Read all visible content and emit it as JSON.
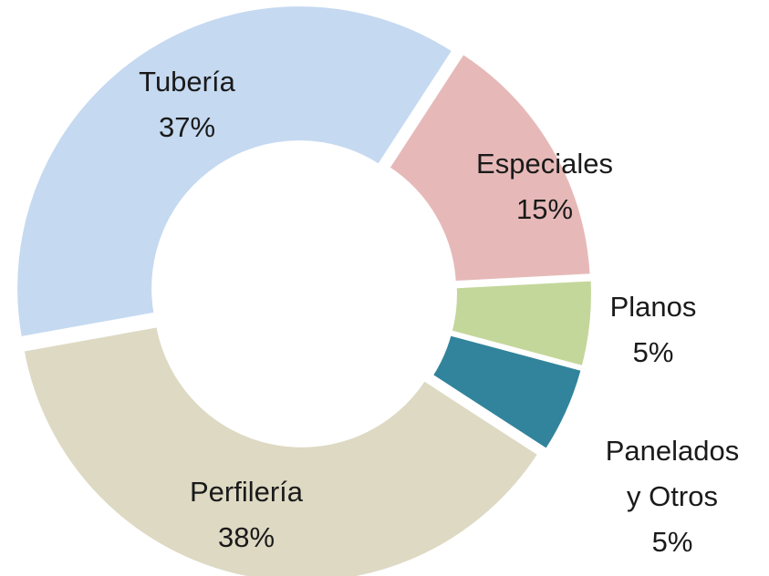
{
  "chart_data": {
    "type": "pie",
    "hole": true,
    "categories": [
      "Especiales",
      "Planos",
      "Panelados y Otros",
      "Perfilería",
      "Tubería"
    ],
    "values": [
      15,
      5,
      5,
      38,
      37
    ],
    "value_labels": [
      "15%",
      "5%",
      "5%",
      "38%",
      "37%"
    ],
    "colors": [
      "#e6b9b8",
      "#c4d79b",
      "#31849b",
      "#ddd9c3",
      "#c5d9f1"
    ]
  }
}
